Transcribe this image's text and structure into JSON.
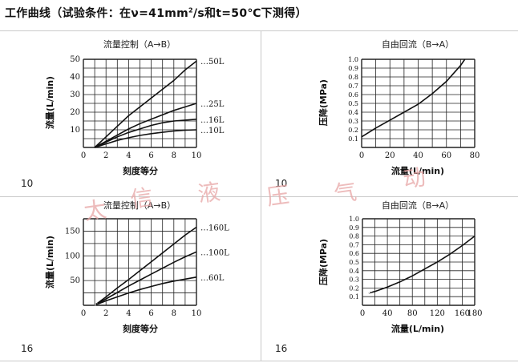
{
  "header": {
    "title_pre": "工作曲线（试验条件：在ν=41mm",
    "title_sup": "2",
    "title_post": "/s和t=50℃下测得）"
  },
  "watermark": [
    "太",
    "信",
    "液",
    "压",
    "气",
    "动"
  ],
  "panels": [
    {
      "id": "10"
    },
    {
      "id": "10"
    },
    {
      "id": "16"
    },
    {
      "id": "16"
    }
  ],
  "chart_data": [
    {
      "type": "line",
      "title": "流量控制（A→B）",
      "xlabel": "刻度等分",
      "ylabel": "流量(L/min)",
      "xlim": [
        0,
        10
      ],
      "ylim": [
        0,
        50
      ],
      "xticks": [
        "0",
        "2",
        "4",
        "6",
        "8",
        "10"
      ],
      "yticks": [
        "10",
        "20",
        "30",
        "40",
        "50"
      ],
      "grid": true,
      "series": [
        {
          "name": "…50L",
          "x": [
            1,
            2,
            3,
            4,
            5,
            6,
            7,
            8,
            9,
            10
          ],
          "y": [
            0,
            6,
            12,
            18,
            23,
            28,
            33,
            38,
            44,
            49
          ]
        },
        {
          "name": "…25L",
          "x": [
            1,
            2,
            3,
            4,
            5,
            6,
            7,
            8,
            9,
            10
          ],
          "y": [
            0,
            3.5,
            7,
            10.5,
            13.5,
            16,
            18.5,
            21,
            23,
            25
          ]
        },
        {
          "name": "…16L",
          "x": [
            1,
            2,
            3,
            4,
            5,
            6,
            7,
            8,
            9,
            10
          ],
          "y": [
            0,
            3,
            6,
            8.5,
            10.5,
            12.5,
            14,
            15,
            15.5,
            16
          ]
        },
        {
          "name": "…10L",
          "x": [
            1,
            2,
            3,
            4,
            5,
            6,
            7,
            8,
            9,
            10
          ],
          "y": [
            0,
            2,
            4,
            5.5,
            6.8,
            7.8,
            8.6,
            9.3,
            9.8,
            10
          ]
        }
      ]
    },
    {
      "type": "line",
      "title": "自由回流（B→A）",
      "xlabel": "流量(L/min)",
      "ylabel": "压降(MPa)",
      "xlim": [
        0,
        80
      ],
      "ylim": [
        0,
        1.0
      ],
      "xticks": [
        "0",
        "20",
        "40",
        "60",
        "80"
      ],
      "yticks": [
        "0.1",
        "0.2",
        "0.3",
        "0.4",
        "0.5",
        "0.6",
        "0.7",
        "0.8",
        "0.9",
        "1.0"
      ],
      "grid": true,
      "series": [
        {
          "x": [
            0,
            10,
            20,
            30,
            40,
            50,
            60,
            70,
            73
          ],
          "y": [
            0.12,
            0.22,
            0.31,
            0.4,
            0.49,
            0.61,
            0.75,
            0.93,
            1.0
          ]
        }
      ]
    },
    {
      "type": "line",
      "title": "流量控制（A→B）",
      "xlabel": "刻度等分",
      "ylabel": "流量(L/min)",
      "xlim": [
        0,
        10
      ],
      "ylim": [
        0,
        175
      ],
      "xticks": [
        "0",
        "2",
        "4",
        "6",
        "8",
        "10"
      ],
      "yticks": [
        "50",
        "100",
        "150"
      ],
      "grid": true,
      "series": [
        {
          "name": "…160L",
          "x": [
            1,
            2,
            3,
            4,
            5,
            6,
            7,
            8,
            9,
            10
          ],
          "y": [
            0,
            17,
            35,
            52,
            70,
            88,
            106,
            124,
            142,
            158
          ]
        },
        {
          "name": "…100L",
          "x": [
            1,
            2,
            3,
            4,
            5,
            6,
            7,
            8,
            9,
            10
          ],
          "y": [
            0,
            13,
            26,
            39,
            51,
            63,
            75,
            87,
            98,
            108
          ]
        },
        {
          "name": "…60L",
          "x": [
            1,
            2,
            3,
            4,
            5,
            6,
            7,
            8,
            9,
            10
          ],
          "y": [
            0,
            9,
            17,
            25,
            32,
            38,
            44,
            49,
            53,
            57
          ]
        }
      ]
    },
    {
      "type": "line",
      "title": "自由回流（B→A）",
      "xlabel": "流量(L/min)",
      "ylabel": "压降(MPa)",
      "xlim": [
        0,
        180
      ],
      "ylim": [
        0,
        1.0
      ],
      "xticks": [
        "0",
        "40",
        "80",
        "120",
        "160",
        "180"
      ],
      "yticks": [
        "0.1",
        "0.2",
        "0.3",
        "0.4",
        "0.5",
        "0.6",
        "0.7",
        "0.8",
        "0.9",
        "1.0"
      ],
      "grid": true,
      "series": [
        {
          "x": [
            10,
            20,
            40,
            60,
            80,
            100,
            120,
            140,
            160,
            180
          ],
          "y": [
            0.14,
            0.16,
            0.21,
            0.27,
            0.34,
            0.42,
            0.5,
            0.59,
            0.69,
            0.8
          ]
        }
      ]
    }
  ],
  "colors": {
    "curve": "#111111",
    "grid": "#222222",
    "divider": "#c9c9c9",
    "watermark": "#e8a6a6"
  }
}
